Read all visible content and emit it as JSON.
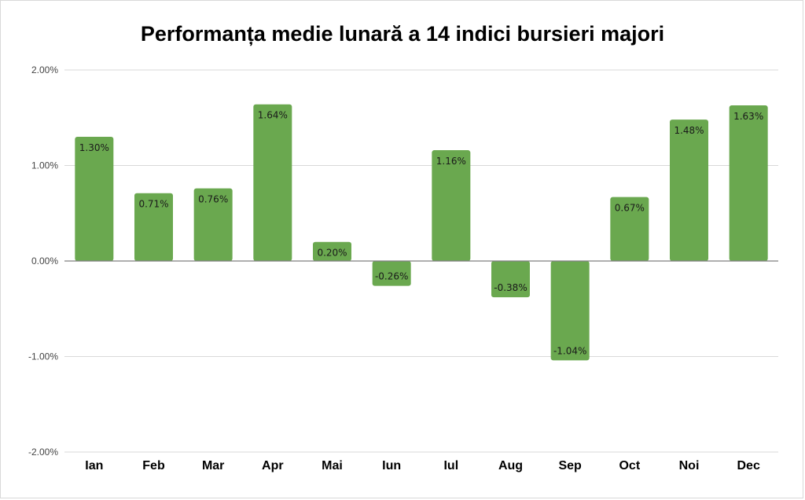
{
  "chart_data": {
    "type": "bar",
    "title": "Performanța medie lunară a 14 indici bursieri majori",
    "xlabel": "",
    "ylabel": "",
    "categories": [
      "Ian",
      "Feb",
      "Mar",
      "Apr",
      "Mai",
      "Iun",
      "Iul",
      "Aug",
      "Sep",
      "Oct",
      "Noi",
      "Dec"
    ],
    "values": [
      1.3,
      0.71,
      0.76,
      1.64,
      0.2,
      -0.26,
      1.16,
      -0.38,
      -1.04,
      0.67,
      1.48,
      1.63
    ],
    "data_labels": [
      "1.30%",
      "0.71%",
      "0.76%",
      "1.64%",
      "0.20%",
      "-0.26%",
      "1.16%",
      "-0.38%",
      "-1.04%",
      "0.67%",
      "1.48%",
      "1.63%"
    ],
    "ylim": [
      -2,
      2
    ],
    "yticks": [
      2,
      1,
      0,
      -1,
      -2
    ],
    "ytick_labels": [
      "2.00%",
      "1.00%",
      "0.00%",
      "-1.00%",
      "-2.00%"
    ],
    "grid": true,
    "legend": "none",
    "bar_color": "#6aa84f",
    "grid_color": "#d9d9d9",
    "zero_line_color": "#7f7f7f"
  }
}
